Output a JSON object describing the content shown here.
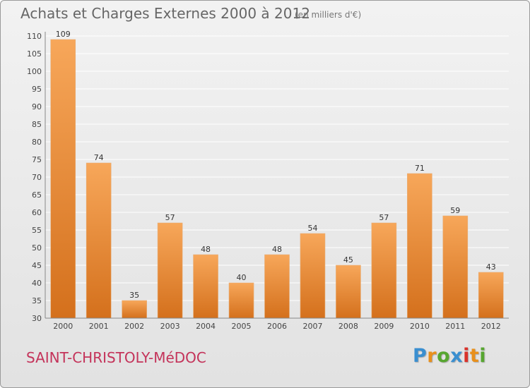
{
  "title": "Achats et Charges Externes 2000 à 2012",
  "subtitle": "(en milliers d'€)",
  "commune": "SAINT-CHRISTOLY-MéDOC",
  "logo": {
    "text": "Proxiti",
    "colors": [
      "#3a8fd0",
      "#e8901c",
      "#57a630",
      "#3a8fd0",
      "#d9322a",
      "#e8901c",
      "#57a630"
    ]
  },
  "colors": {
    "bar_top": "#f7a75a",
    "bar_bottom": "#d4701c",
    "bar_edge": "#e6ae78",
    "title": "#666666",
    "commune": "#c4335a",
    "grid": "#ffffff"
  },
  "chart_data": {
    "type": "bar",
    "title": "Achats et Charges Externes 2000 à 2012",
    "subtitle": "(en milliers d'€)",
    "categories": [
      "2000",
      "2001",
      "2002",
      "2003",
      "2004",
      "2005",
      "2006",
      "2007",
      "2008",
      "2009",
      "2010",
      "2011",
      "2012"
    ],
    "values": [
      109,
      74,
      35,
      57,
      48,
      40,
      48,
      54,
      45,
      57,
      71,
      59,
      43
    ],
    "xlabel": "",
    "ylabel": "",
    "ylim": [
      30,
      110
    ],
    "yticks": [
      30,
      35,
      40,
      45,
      50,
      55,
      60,
      65,
      70,
      75,
      80,
      85,
      90,
      95,
      100,
      105,
      110
    ],
    "grid": true,
    "legend": "none"
  }
}
